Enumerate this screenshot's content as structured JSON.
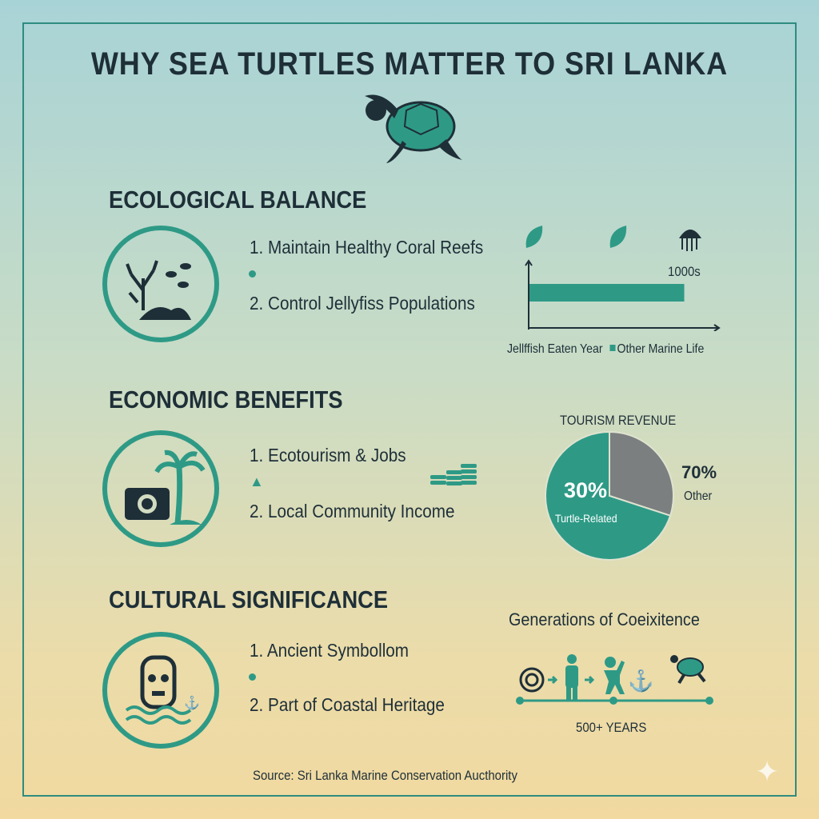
{
  "title": "WHY SEA TURTLES MATTER TO SRI LANKA",
  "colors": {
    "teal": "#2e9a86",
    "dark": "#1e2f38",
    "grey": "#7b7f80"
  },
  "ecological": {
    "heading": "ECOLOGICAL BALANCE",
    "items": [
      "1. Maintain Healthy Coral Reefs",
      "2. Control Jellyfiss Populations"
    ],
    "chart": {
      "bar_label": "1000s",
      "legend_a": "Jellffish Eaten Year",
      "legend_b": "Other Marine Life",
      "bar_fraction": 0.82
    }
  },
  "economic": {
    "heading": "ECONOMIC BENEFITS",
    "items": [
      "1. Ecotourism & Jobs",
      "2. Local Community Income"
    ]
  },
  "chart_data": {
    "type": "pie",
    "title": "TOURISM REVENUE",
    "slices": [
      {
        "label": "Turtle-Related",
        "value": 30,
        "display": "30%"
      },
      {
        "label": "Other",
        "value": 70,
        "display": "70%"
      }
    ]
  },
  "cultural": {
    "heading": "CULTURAL SIGNIFICANCE",
    "items": [
      "1. Ancient Symbollom",
      "2. Part of Coastal Heritage"
    ],
    "timeline_title": "Generations of Coeixitence",
    "timeline_label": "500+ YEARS"
  },
  "source": "Source: Sri Lanka Marine Conservation Aucthority"
}
